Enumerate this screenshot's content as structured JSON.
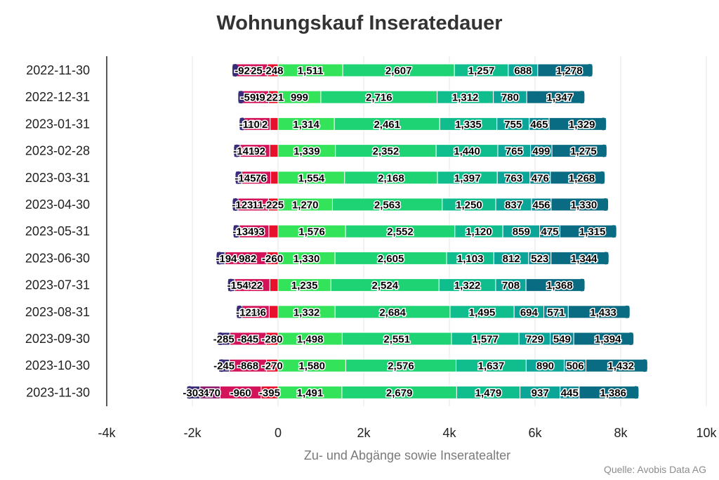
{
  "chart_data": {
    "type": "bar",
    "orientation": "horizontal",
    "stacked": true,
    "title": "Wohnungskauf Inseratedauer",
    "xlabel": "Zu- und Abgänge sowie Inseratealter",
    "ylabel": "",
    "source": "Quelle: Avobis Data AG",
    "xlim": [
      -4000,
      10000
    ],
    "xticks": [
      -4000,
      -2000,
      0,
      2000,
      4000,
      6000,
      8000,
      10000
    ],
    "xtick_labels": [
      "-4k",
      "-2k",
      "0",
      "2k",
      "4k",
      "6k",
      "8k",
      "10k"
    ],
    "grid": true,
    "legend": "none",
    "categories": [
      "2022-11-30",
      "2022-12-31",
      "2023-01-31",
      "2023-02-28",
      "2023-03-31",
      "2023-04-30",
      "2023-05-31",
      "2023-06-30",
      "2023-07-31",
      "2023-08-31",
      "2023-09-30",
      "2023-10-30",
      "2023-11-30"
    ],
    "series": [
      {
        "color": "#e8112d",
        "values": [
          -248,
          -221,
          -186,
          -195,
          -172,
          -225,
          -215,
          -260,
          -193,
          -208,
          -280,
          -270,
          -395
        ]
      },
      {
        "color": "#d3135a",
        "values": [
          -725,
          -649,
          -602,
          -692,
          -676,
          -711,
          -693,
          -982,
          -822,
          -636,
          -845,
          -868,
          -960
        ]
      },
      {
        "color": "#8e1a6e",
        "values": [
          0,
          0,
          0,
          0,
          0,
          0,
          0,
          0,
          0,
          0,
          0,
          0,
          -470
        ]
      },
      {
        "color": "#3a2b7a",
        "values": [
          -92,
          -59,
          -110,
          -141,
          -145,
          -123,
          -134,
          -194,
          -154,
          -121,
          -285,
          -245,
          -303
        ]
      },
      {
        "color": "#33e35a",
        "values": [
          1511,
          999,
          1314,
          1339,
          1554,
          1270,
          1576,
          1330,
          1235,
          1332,
          1498,
          1580,
          1491
        ]
      },
      {
        "color": "#1dd373",
        "values": [
          2607,
          2716,
          2461,
          2352,
          2168,
          2563,
          2552,
          2605,
          2524,
          2684,
          2551,
          2576,
          2679
        ]
      },
      {
        "color": "#10bd8c",
        "values": [
          1257,
          1312,
          1335,
          1440,
          1397,
          1250,
          1120,
          1103,
          1322,
          1495,
          1577,
          1637,
          1479
        ]
      },
      {
        "color": "#0ca698",
        "values": [
          688,
          780,
          755,
          765,
          763,
          837,
          859,
          812,
          708,
          694,
          729,
          890,
          937
        ]
      },
      {
        "color": "#0b8a96",
        "values": [
          0,
          0,
          465,
          499,
          476,
          456,
          475,
          523,
          0,
          571,
          549,
          506,
          445
        ]
      },
      {
        "color": "#0a6c83",
        "values": [
          1278,
          1347,
          1329,
          1275,
          1268,
          1330,
          1315,
          1344,
          1368,
          1433,
          1394,
          1432,
          1386
        ]
      }
    ]
  }
}
